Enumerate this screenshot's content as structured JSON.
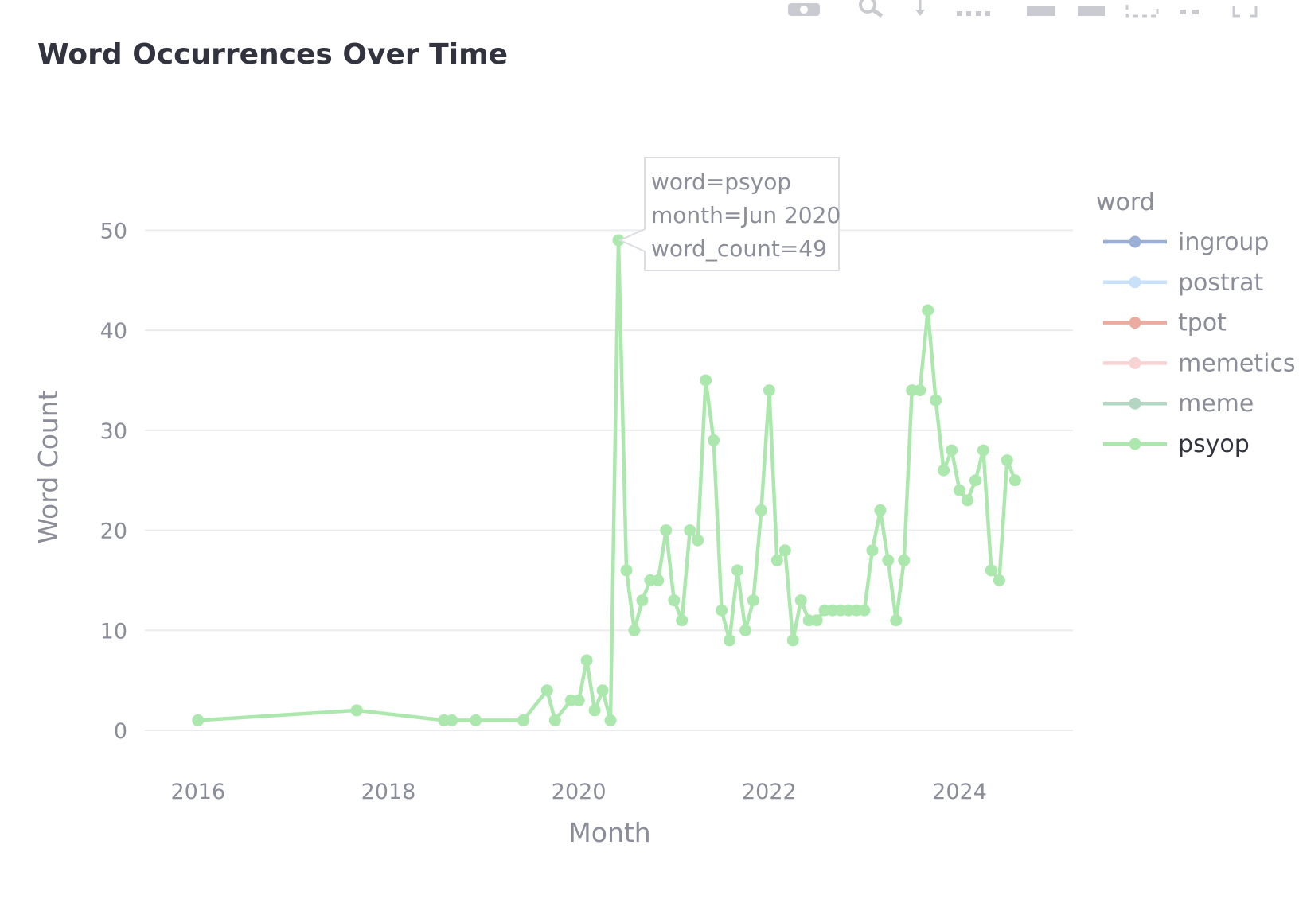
{
  "chart_data": {
    "type": "line",
    "title": "Word Occurrences Over Time",
    "xlabel": "Month",
    "ylabel": "Word Count",
    "x_ticks": [
      "2016",
      "2018",
      "2020",
      "2022",
      "2024"
    ],
    "y_ticks": [
      0,
      10,
      20,
      30,
      40,
      50
    ],
    "ylim": [
      -3.5,
      56
    ],
    "xlim": [
      "2015-06-10",
      "2025-03-10"
    ],
    "grid": "horizontal",
    "legend": {
      "title": "word",
      "placement": "right"
    },
    "series": [
      {
        "name": "ingroup",
        "color": "#9aaed6",
        "dim": true,
        "points": []
      },
      {
        "name": "postrat",
        "color": "#c9e0fb",
        "dim": true,
        "points": []
      },
      {
        "name": "tpot",
        "color": "#ecab9f",
        "dim": true,
        "points": []
      },
      {
        "name": "memetics",
        "color": "#f7d3d3",
        "dim": true,
        "points": []
      },
      {
        "name": "meme",
        "color": "#b3d6c3",
        "dim": true,
        "points": []
      },
      {
        "name": "psyop",
        "color": "#ace8ae",
        "dim": false,
        "points": [
          [
            "2016-01",
            1
          ],
          [
            "2017-09",
            2
          ],
          [
            "2018-08",
            1
          ],
          [
            "2018-09",
            1
          ],
          [
            "2018-12",
            1
          ],
          [
            "2019-06",
            1
          ],
          [
            "2019-09",
            4
          ],
          [
            "2019-10",
            1
          ],
          [
            "2019-12",
            3
          ],
          [
            "2020-01",
            3
          ],
          [
            "2020-02",
            7
          ],
          [
            "2020-03",
            2
          ],
          [
            "2020-04",
            4
          ],
          [
            "2020-05",
            1
          ],
          [
            "2020-06",
            49
          ],
          [
            "2020-07",
            16
          ],
          [
            "2020-08",
            10
          ],
          [
            "2020-09",
            13
          ],
          [
            "2020-10",
            15
          ],
          [
            "2020-11",
            15
          ],
          [
            "2020-12",
            20
          ],
          [
            "2021-01",
            13
          ],
          [
            "2021-02",
            11
          ],
          [
            "2021-03",
            20
          ],
          [
            "2021-04",
            19
          ],
          [
            "2021-05",
            35
          ],
          [
            "2021-06",
            29
          ],
          [
            "2021-07",
            12
          ],
          [
            "2021-08",
            9
          ],
          [
            "2021-09",
            16
          ],
          [
            "2021-10",
            10
          ],
          [
            "2021-11",
            13
          ],
          [
            "2021-12",
            22
          ],
          [
            "2022-01",
            34
          ],
          [
            "2022-02",
            17
          ],
          [
            "2022-03",
            18
          ],
          [
            "2022-04",
            9
          ],
          [
            "2022-05",
            13
          ],
          [
            "2022-06",
            11
          ],
          [
            "2022-07",
            11
          ],
          [
            "2022-08",
            12
          ],
          [
            "2022-09",
            12
          ],
          [
            "2022-10",
            12
          ],
          [
            "2022-11",
            12
          ],
          [
            "2022-12",
            12
          ],
          [
            "2023-01",
            12
          ],
          [
            "2023-02",
            18
          ],
          [
            "2023-03",
            22
          ],
          [
            "2023-04",
            17
          ],
          [
            "2023-05",
            11
          ],
          [
            "2023-06",
            17
          ],
          [
            "2023-07",
            34
          ],
          [
            "2023-08",
            34
          ],
          [
            "2023-09",
            42
          ],
          [
            "2023-10",
            33
          ],
          [
            "2023-11",
            26
          ],
          [
            "2023-12",
            28
          ],
          [
            "2024-01",
            24
          ],
          [
            "2024-02",
            23
          ],
          [
            "2024-03",
            25
          ],
          [
            "2024-04",
            28
          ],
          [
            "2024-05",
            16
          ],
          [
            "2024-06",
            15
          ],
          [
            "2024-07",
            27
          ],
          [
            "2024-08",
            25
          ]
        ]
      }
    ],
    "tooltip": {
      "series": "psyop",
      "point_month": "2020-06",
      "lines": [
        "word=psyop",
        "month=Jun 2020",
        "word_count=49"
      ]
    }
  },
  "modebar": {
    "icons": [
      "camera-icon",
      "zoom-icon",
      "pan-icon",
      "lasso-icon",
      "box-select-icon",
      "zoom-in-icon",
      "zoom-out-icon",
      "autoscale-icon",
      "reset-axes-icon",
      "fullscreen-icon"
    ]
  }
}
